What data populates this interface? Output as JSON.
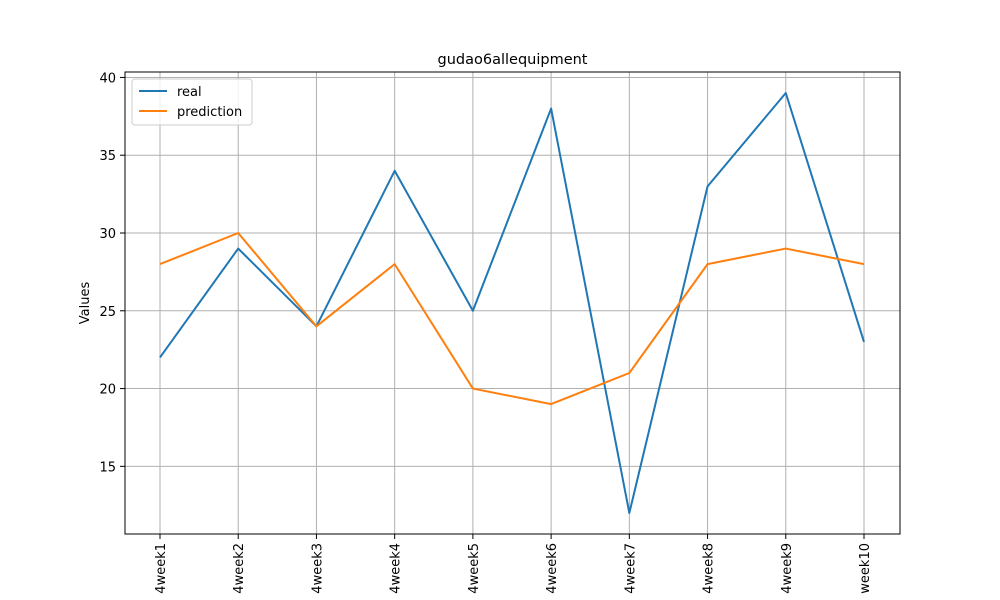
{
  "chart_data": {
    "type": "line",
    "title": "gudao6allequipment",
    "xlabel": "",
    "ylabel": "Values",
    "categories": [
      "4week1",
      "4week2",
      "4week3",
      "4week4",
      "4week5",
      "4week6",
      "4week7",
      "4week8",
      "4week9",
      "week10"
    ],
    "series": [
      {
        "name": "real",
        "color": "#1f77b4",
        "values": [
          22,
          29,
          24,
          34,
          25,
          38,
          12,
          33,
          39,
          23
        ]
      },
      {
        "name": "prediction",
        "color": "#ff7f0e",
        "values": [
          28,
          30,
          24,
          28,
          20,
          19,
          21,
          28,
          29,
          28
        ]
      }
    ],
    "ylim": [
      10.65,
      40.35
    ],
    "yticks": [
      15,
      20,
      25,
      30,
      35,
      40
    ],
    "grid": true,
    "legend_position": "top-left"
  }
}
